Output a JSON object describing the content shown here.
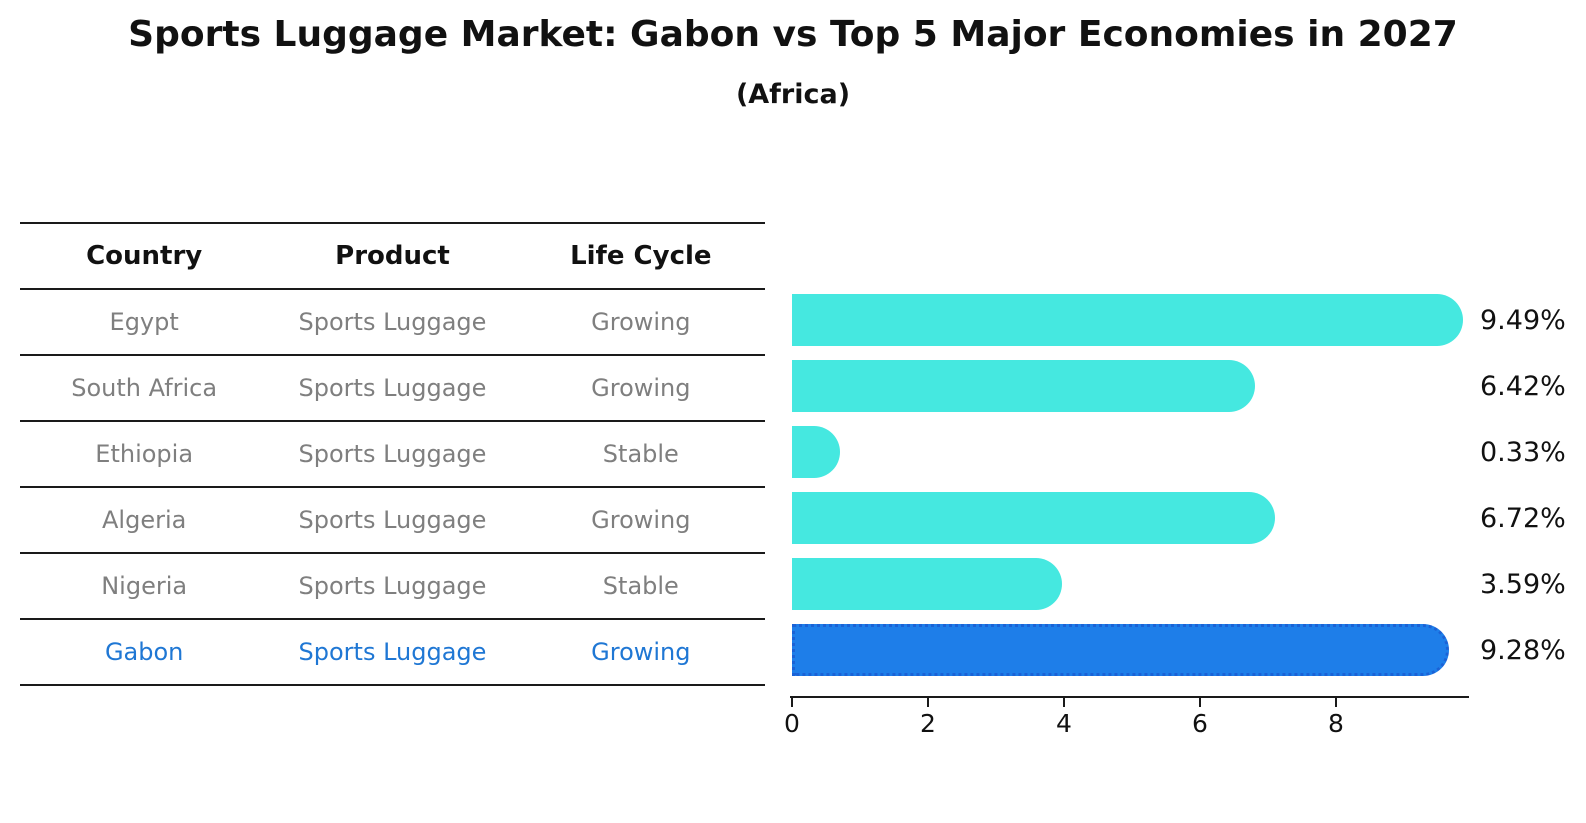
{
  "title": "Sports Luggage Market: Gabon vs Top 5 Major Economies in 2027",
  "subtitle": "(Africa)",
  "table": {
    "headers": {
      "country": "Country",
      "product": "Product",
      "life_cycle": "Life Cycle"
    },
    "rows": [
      {
        "country": "Egypt",
        "product": "Sports Luggage",
        "life_cycle": "Growing",
        "highlight": false
      },
      {
        "country": "South Africa",
        "product": "Sports Luggage",
        "life_cycle": "Growing",
        "highlight": false
      },
      {
        "country": "Ethiopia",
        "product": "Sports Luggage",
        "life_cycle": "Stable",
        "highlight": false
      },
      {
        "country": "Algeria",
        "product": "Sports Luggage",
        "life_cycle": "Growing",
        "highlight": false
      },
      {
        "country": "Nigeria",
        "product": "Sports Luggage",
        "life_cycle": "Stable",
        "highlight": false
      },
      {
        "country": "Gabon",
        "product": "Sports Luggage",
        "life_cycle": "Growing",
        "highlight": true
      }
    ]
  },
  "chart_data": {
    "type": "bar",
    "orientation": "horizontal",
    "title": "Sports Luggage Market: Gabon vs Top 5 Major Economies in 2027",
    "subtitle": "(Africa)",
    "categories": [
      "Egypt",
      "South Africa",
      "Ethiopia",
      "Algeria",
      "Nigeria",
      "Gabon"
    ],
    "values": [
      9.49,
      6.42,
      0.33,
      6.72,
      3.59,
      9.28
    ],
    "value_labels": [
      "9.49%",
      "6.42%",
      "0.33%",
      "6.72%",
      "3.59%",
      "9.28%"
    ],
    "x_ticks": [
      0,
      2,
      4,
      6,
      8
    ],
    "xlim": [
      0,
      9.95
    ],
    "grid": false,
    "legend": false,
    "bar_color": "#45E8E0",
    "highlight": {
      "index": 5,
      "category": "Gabon",
      "fill": "#1E7EE9",
      "border": "#1B62D6"
    }
  },
  "colors": {
    "text": "#111111",
    "muted_text": "#7f7f7f",
    "highlight_text": "#1f77d4",
    "axis": "#1a1a1a"
  }
}
